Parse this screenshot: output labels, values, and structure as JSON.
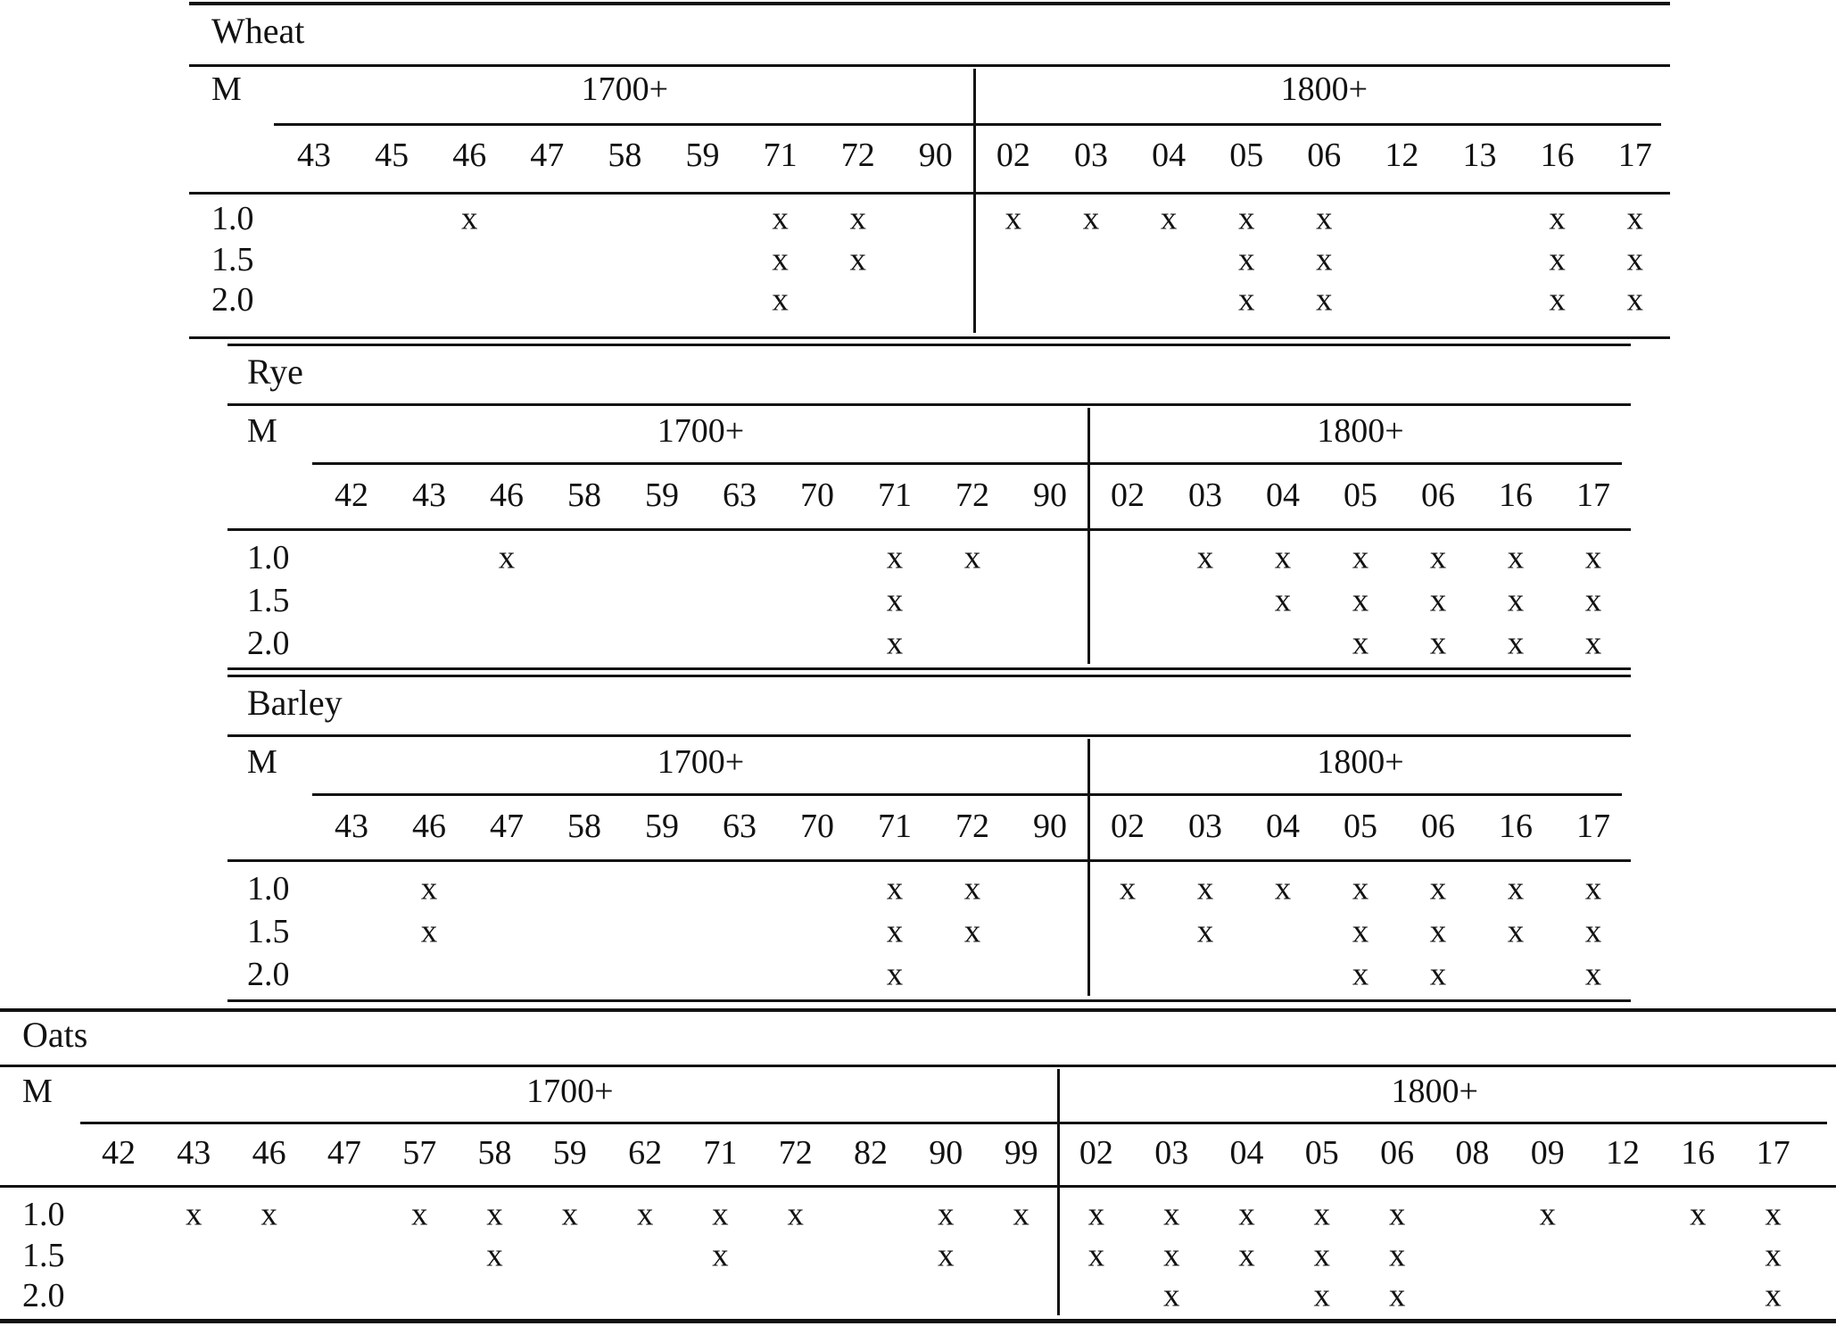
{
  "mark_glyph": "x",
  "tables": [
    {
      "title": "Wheat",
      "m_label": "M",
      "group_labels": [
        "1700+",
        "1800+"
      ],
      "columns_1700": [
        "43",
        "45",
        "46",
        "47",
        "58",
        "59",
        "71",
        "72",
        "90"
      ],
      "columns_1800": [
        "02",
        "03",
        "04",
        "05",
        "06",
        "12",
        "13",
        "16",
        "17"
      ],
      "rows": [
        {
          "m": "1.0",
          "marks_1700": [
            "46",
            "71",
            "72"
          ],
          "marks_1800": [
            "02",
            "03",
            "04",
            "05",
            "06",
            "16",
            "17"
          ]
        },
        {
          "m": "1.5",
          "marks_1700": [
            "71",
            "72"
          ],
          "marks_1800": [
            "05",
            "06",
            "16",
            "17"
          ]
        },
        {
          "m": "2.0",
          "marks_1700": [
            "71"
          ],
          "marks_1800": [
            "05",
            "06",
            "16",
            "17"
          ]
        }
      ]
    },
    {
      "title": "Rye",
      "m_label": "M",
      "group_labels": [
        "1700+",
        "1800+"
      ],
      "columns_1700": [
        "42",
        "43",
        "46",
        "58",
        "59",
        "63",
        "70",
        "71",
        "72",
        "90"
      ],
      "columns_1800": [
        "02",
        "03",
        "04",
        "05",
        "06",
        "16",
        "17"
      ],
      "rows": [
        {
          "m": "1.0",
          "marks_1700": [
            "46",
            "71",
            "72"
          ],
          "marks_1800": [
            "03",
            "04",
            "05",
            "06",
            "16",
            "17"
          ]
        },
        {
          "m": "1.5",
          "marks_1700": [
            "71"
          ],
          "marks_1800": [
            "04",
            "05",
            "06",
            "16",
            "17"
          ]
        },
        {
          "m": "2.0",
          "marks_1700": [
            "71"
          ],
          "marks_1800": [
            "05",
            "06",
            "16",
            "17"
          ]
        }
      ]
    },
    {
      "title": "Barley",
      "m_label": "M",
      "group_labels": [
        "1700+",
        "1800+"
      ],
      "columns_1700": [
        "43",
        "46",
        "47",
        "58",
        "59",
        "63",
        "70",
        "71",
        "72",
        "90"
      ],
      "columns_1800": [
        "02",
        "03",
        "04",
        "05",
        "06",
        "16",
        "17"
      ],
      "rows": [
        {
          "m": "1.0",
          "marks_1700": [
            "46",
            "71",
            "72"
          ],
          "marks_1800": [
            "02",
            "03",
            "04",
            "05",
            "06",
            "16",
            "17"
          ]
        },
        {
          "m": "1.5",
          "marks_1700": [
            "46",
            "71",
            "72"
          ],
          "marks_1800": [
            "03",
            "05",
            "06",
            "16",
            "17"
          ]
        },
        {
          "m": "2.0",
          "marks_1700": [
            "71"
          ],
          "marks_1800": [
            "05",
            "06",
            "17"
          ]
        }
      ]
    },
    {
      "title": "Oats",
      "m_label": "M",
      "group_labels": [
        "1700+",
        "1800+"
      ],
      "columns_1700": [
        "42",
        "43",
        "46",
        "47",
        "57",
        "58",
        "59",
        "62",
        "71",
        "72",
        "82",
        "90",
        "99"
      ],
      "columns_1800": [
        "02",
        "03",
        "04",
        "05",
        "06",
        "08",
        "09",
        "12",
        "16",
        "17"
      ],
      "rows": [
        {
          "m": "1.0",
          "marks_1700": [
            "43",
            "46",
            "57",
            "58",
            "59",
            "62",
            "71",
            "72",
            "90",
            "99"
          ],
          "marks_1800": [
            "02",
            "03",
            "04",
            "05",
            "06",
            "09",
            "16",
            "17"
          ]
        },
        {
          "m": "1.5",
          "marks_1700": [
            "58",
            "71",
            "90"
          ],
          "marks_1800": [
            "02",
            "03",
            "04",
            "05",
            "06",
            "17"
          ]
        },
        {
          "m": "2.0",
          "marks_1700": [],
          "marks_1800": [
            "03",
            "05",
            "06",
            "17"
          ]
        }
      ]
    }
  ]
}
